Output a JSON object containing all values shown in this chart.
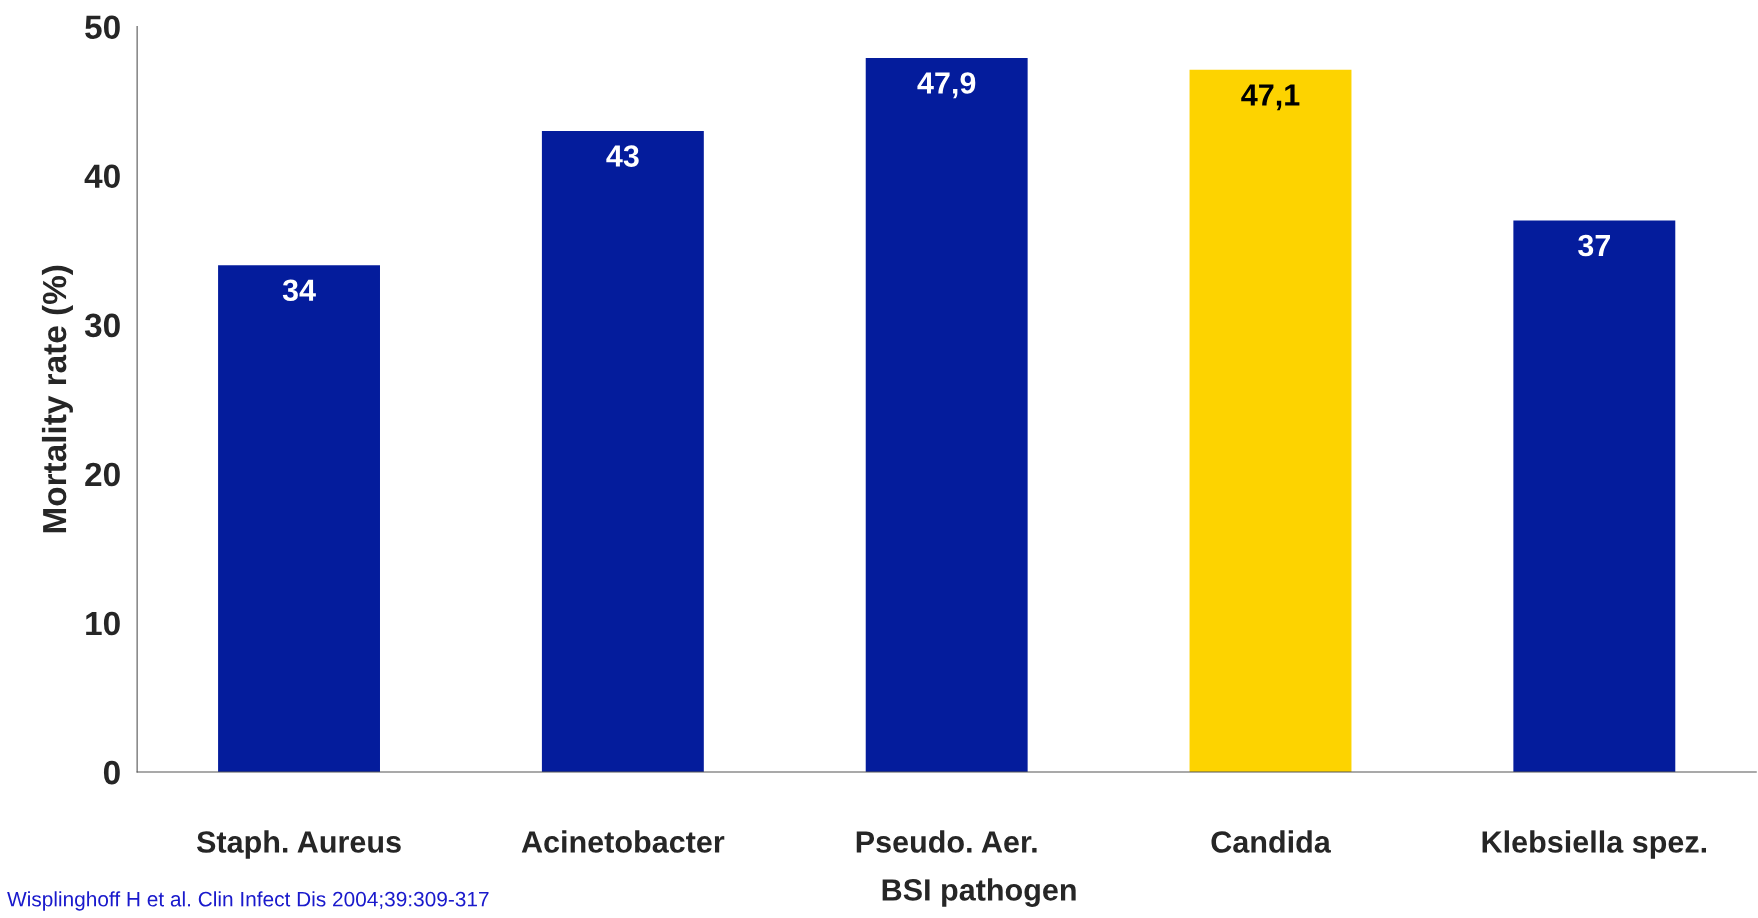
{
  "chart_data": {
    "type": "bar",
    "categories": [
      "Staph. Aureus",
      "Acinetobacter",
      "Pseudo. Aer.",
      "Candida",
      "Klebsiella spez."
    ],
    "values": [
      34,
      43,
      47.9,
      47.1,
      37
    ],
    "colors": [
      "#041c9c",
      "#041c9c",
      "#041c9c",
      "#fdd300",
      "#041c9c"
    ],
    "value_labels": [
      "34",
      "43",
      "47,9",
      "47,1",
      "37"
    ],
    "xlabel": "BSI pathogen",
    "ylabel": "Mortality rate (%)",
    "ylim": [
      0,
      50
    ],
    "yticks": [
      0,
      10,
      20,
      30,
      40,
      50
    ],
    "grid": false,
    "legend": false,
    "annotations": [
      "Wisplinghoff H et al. Clin Infect Dis 2004;39:309-317"
    ]
  }
}
